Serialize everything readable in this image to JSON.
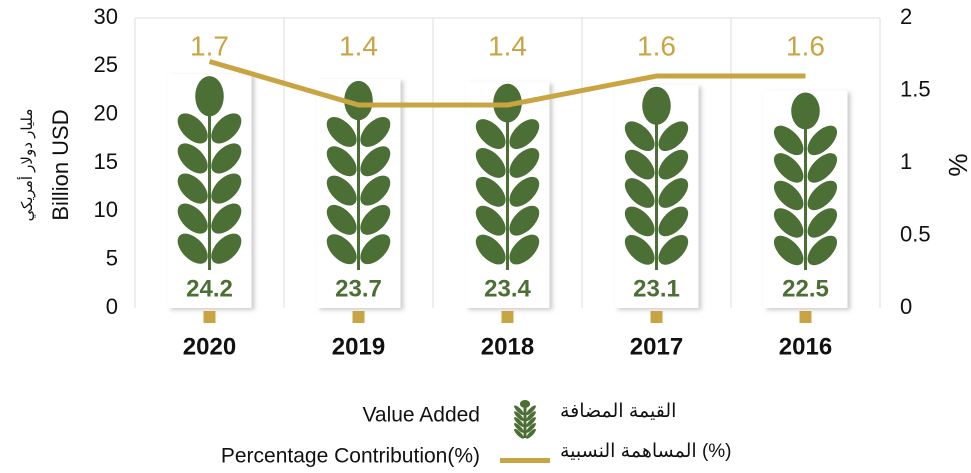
{
  "chart_data": {
    "type": "bar",
    "categories": [
      "2020",
      "2019",
      "2018",
      "2017",
      "2016"
    ],
    "series": [
      {
        "name": "Value Added",
        "name_ar": "القيمة المضافة",
        "color": "#4b6f35",
        "values": [
          24.2,
          23.7,
          23.4,
          23.1,
          22.5
        ]
      },
      {
        "name": "Percentage Contribution(%)",
        "name_ar": "المساهمة النسبية (%)",
        "color": "#c9a443",
        "axis": "y2",
        "type": "line",
        "values": [
          1.7,
          1.4,
          1.4,
          1.6,
          1.6
        ]
      }
    ],
    "ylabel": "Billion USD",
    "ylabel_ar": "مليار دولار أمريكي",
    "y2label": "%",
    "ylim": [
      0,
      30
    ],
    "yticks": [
      0,
      5,
      10,
      15,
      20,
      25,
      30
    ],
    "y2lim": [
      0,
      2
    ],
    "y2ticks": [
      0,
      0.5,
      1,
      1.5,
      2
    ]
  }
}
